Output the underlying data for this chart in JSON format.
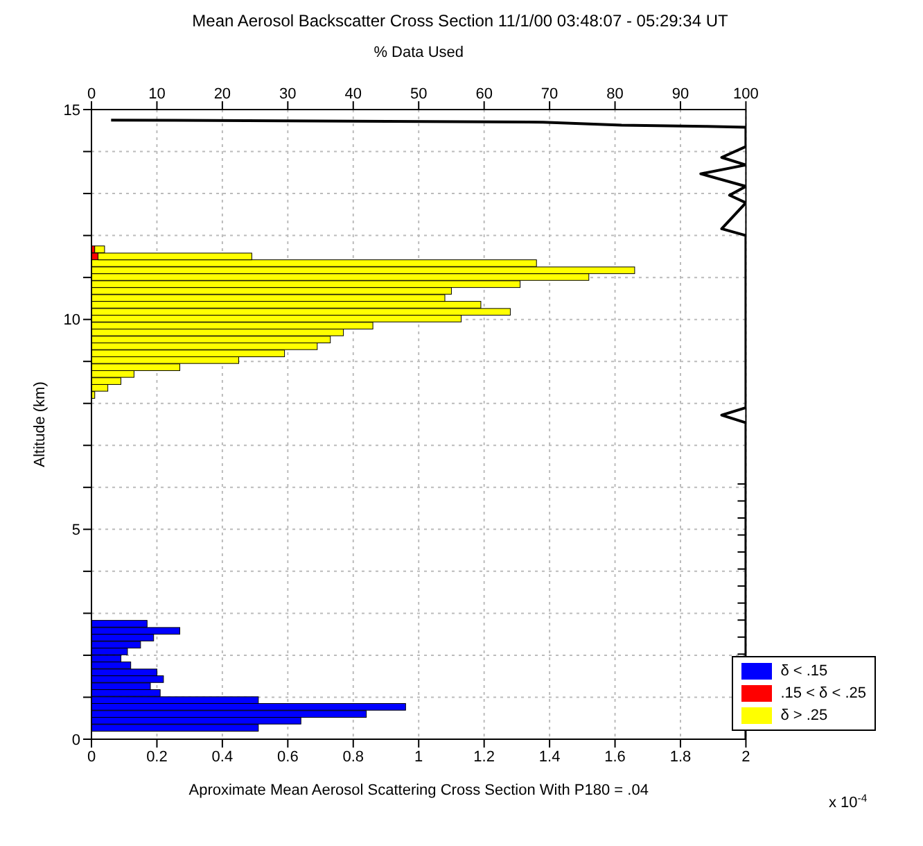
{
  "chart_data": {
    "type": "bar",
    "orientation": "horizontal",
    "stacked": true,
    "title": "Mean Aerosol Backscatter Cross Section 11/1/00 03:48:07 - 05:29:34 UT",
    "x2label": "% Data Used",
    "xlabel": "Aproximate Mean Aerosol Scattering Cross Section With P180 = .04",
    "ylabel": "Altitude (km)",
    "annotations": [
      "x 10$^{-4}$"
    ],
    "x": [
      0.27,
      0.44,
      0.6,
      0.77,
      0.93,
      1.1,
      1.26,
      1.43,
      1.59,
      1.76,
      1.92,
      2.09,
      2.25,
      2.42,
      2.58,
      2.75,
      8.2,
      8.37,
      8.53,
      8.7,
      8.86,
      9.03,
      9.19,
      9.36,
      9.52,
      9.69,
      9.85,
      10.02,
      10.18,
      10.35,
      10.51,
      10.68,
      10.84,
      11.01,
      11.17,
      11.34,
      11.5,
      11.67
    ],
    "series": [
      {
        "name": "δ < .15",
        "color": "#0000ff",
        "values": [
          0.51,
          0.64,
          0.84,
          0.96,
          0.51,
          0.21,
          0.18,
          0.22,
          0.2,
          0.12,
          0.09,
          0.11,
          0.15,
          0.19,
          0.27,
          0.17,
          null,
          null,
          null,
          null,
          null,
          null,
          null,
          null,
          null,
          null,
          null,
          null,
          null,
          null,
          null,
          null,
          null,
          null,
          null,
          null,
          null,
          null
        ]
      },
      {
        "name": ".15 < δ < .25",
        "color": "#ff0000",
        "values": [
          null,
          null,
          null,
          null,
          null,
          null,
          null,
          null,
          null,
          null,
          null,
          null,
          null,
          null,
          null,
          null,
          null,
          null,
          null,
          null,
          null,
          null,
          null,
          null,
          null,
          null,
          null,
          null,
          null,
          null,
          null,
          null,
          null,
          null,
          null,
          null,
          0.02,
          0.01
        ]
      },
      {
        "name": "δ > .25",
        "color": "#ffff00",
        "values": [
          null,
          null,
          null,
          null,
          null,
          null,
          null,
          null,
          null,
          null,
          null,
          null,
          null,
          null,
          null,
          null,
          0.01,
          0.05,
          0.09,
          0.13,
          0.27,
          0.45,
          0.59,
          0.69,
          0.73,
          0.77,
          0.86,
          1.13,
          1.28,
          1.19,
          1.08,
          1.1,
          1.31,
          1.52,
          1.66,
          1.36,
          0.47,
          0.03
        ]
      },
      {
        "type": "line",
        "axis": "x2",
        "color": "#000000",
        "x": [
          14.75,
          14.7,
          14.63,
          14.6,
          14.58,
          14.12,
          13.86,
          13.68,
          13.47,
          13.17,
          12.96,
          12.78,
          12.16,
          12.0,
          7.9,
          7.72,
          7.54,
          0
        ],
        "values": [
          3,
          69,
          81,
          94,
          100,
          100,
          96.3,
          100,
          93.1,
          100,
          97.5,
          100,
          96.3,
          100,
          100,
          96.3,
          100,
          100
        ]
      }
    ],
    "xlim": [
      0,
      2
    ],
    "xticks": [
      0,
      0.2,
      0.4,
      0.6,
      0.8,
      1,
      1.2,
      1.4,
      1.6,
      1.8,
      2
    ],
    "x2lim": [
      0,
      100
    ],
    "x2ticks": [
      0,
      10,
      20,
      30,
      40,
      50,
      60,
      70,
      80,
      90,
      100
    ],
    "ylim": [
      0,
      15
    ],
    "yticks": [
      0,
      {
        "value": 1,
        "label": null
      },
      {
        "value": 2,
        "label": null
      },
      {
        "value": 3,
        "label": null
      },
      {
        "value": 4,
        "label": null
      },
      5,
      {
        "value": 6,
        "label": null
      },
      {
        "value": 7,
        "label": null
      },
      {
        "value": 8,
        "label": null
      },
      {
        "value": 9,
        "label": null
      },
      10,
      {
        "value": 11,
        "label": null
      },
      {
        "value": 12,
        "label": null
      },
      {
        "value": 13,
        "label": null
      },
      {
        "value": 14,
        "label": null
      },
      15
    ],
    "grid": true,
    "legend": "bottom right",
    "marker": "none"
  }
}
